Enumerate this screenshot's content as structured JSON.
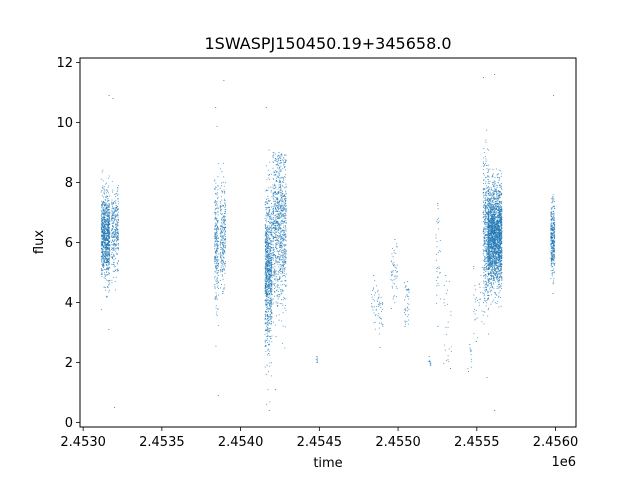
{
  "chart_data": {
    "type": "scatter",
    "title": "1SWASPJ150450.19+345658.0",
    "xlabel": "time",
    "ylabel": "flux",
    "x_offset_label": "1e6",
    "xlim": [
      2452980,
      2456130
    ],
    "ylim": [
      -0.15,
      12.15
    ],
    "x_ticks": [
      2453000,
      2453500,
      2454000,
      2454500,
      2455000,
      2455500,
      2456000
    ],
    "x_tick_labels": [
      "2.4530",
      "2.4535",
      "2.4540",
      "2.4545",
      "2.4550",
      "2.4555",
      "2.4560"
    ],
    "y_ticks": [
      0,
      2,
      4,
      6,
      8,
      10,
      12
    ],
    "y_tick_labels": [
      "0",
      "2",
      "4",
      "6",
      "8",
      "10",
      "12"
    ],
    "grid": false,
    "marker_color": "#1f77b4",
    "observation_clusters": [
      {
        "x_start": 2453115,
        "x_end": 2453170,
        "flux_center": 6.2,
        "flux_spread": 0.7,
        "flux_min": 3.1,
        "flux_max": 10.9,
        "points": 900
      },
      {
        "x_start": 2453180,
        "x_end": 2453225,
        "flux_center": 6.4,
        "flux_spread": 0.7,
        "flux_min": 0.5,
        "flux_max": 10.8,
        "points": 300
      },
      {
        "x_start": 2453835,
        "x_end": 2453860,
        "flux_center": 6.0,
        "flux_spread": 1.1,
        "flux_min": 0.9,
        "flux_max": 10.5,
        "points": 250
      },
      {
        "x_start": 2453870,
        "x_end": 2453905,
        "flux_center": 6.2,
        "flux_spread": 0.9,
        "flux_min": 4.3,
        "flux_max": 11.4,
        "points": 250
      },
      {
        "x_start": 2454155,
        "x_end": 2454200,
        "flux_center": 5.0,
        "flux_spread": 1.3,
        "flux_min": 0.4,
        "flux_max": 10.5,
        "points": 900
      },
      {
        "x_start": 2454205,
        "x_end": 2454290,
        "flux_center": 6.5,
        "flux_spread": 1.3,
        "flux_min": 1.1,
        "flux_max": 9.0,
        "points": 900
      },
      {
        "x_start": 2454480,
        "x_end": 2454490,
        "flux_center": 2.1,
        "flux_spread": 0.1,
        "flux_min": 2.0,
        "flux_max": 2.2,
        "points": 6
      },
      {
        "x_start": 2454830,
        "x_end": 2454905,
        "flux_center": 3.9,
        "flux_spread": 0.4,
        "flux_min": 2.5,
        "flux_max": 4.9,
        "points": 60
      },
      {
        "x_start": 2454955,
        "x_end": 2454995,
        "flux_center": 5.0,
        "flux_spread": 0.5,
        "flux_min": 3.8,
        "flux_max": 6.1,
        "points": 50
      },
      {
        "x_start": 2455040,
        "x_end": 2455070,
        "flux_center": 4.0,
        "flux_spread": 0.4,
        "flux_min": 3.2,
        "flux_max": 4.7,
        "points": 40
      },
      {
        "x_start": 2455190,
        "x_end": 2455210,
        "flux_center": 2.0,
        "flux_spread": 0.1,
        "flux_min": 1.9,
        "flux_max": 2.2,
        "points": 8
      },
      {
        "x_start": 2455240,
        "x_end": 2455270,
        "flux_center": 5.5,
        "flux_spread": 1.0,
        "flux_min": 3.2,
        "flux_max": 7.3,
        "points": 35
      },
      {
        "x_start": 2455290,
        "x_end": 2455340,
        "flux_center": 3.6,
        "flux_spread": 1.0,
        "flux_min": 1.8,
        "flux_max": 4.9,
        "points": 25
      },
      {
        "x_start": 2455440,
        "x_end": 2455470,
        "flux_center": 2.2,
        "flux_spread": 0.3,
        "flux_min": 1.7,
        "flux_max": 2.6,
        "points": 10
      },
      {
        "x_start": 2455480,
        "x_end": 2455540,
        "flux_center": 3.9,
        "flux_spread": 0.8,
        "flux_min": 2.7,
        "flux_max": 5.2,
        "points": 30
      },
      {
        "x_start": 2455540,
        "x_end": 2455575,
        "flux_center": 6.3,
        "flux_spread": 1.2,
        "flux_min": 1.5,
        "flux_max": 11.5,
        "points": 400
      },
      {
        "x_start": 2455570,
        "x_end": 2455660,
        "flux_center": 6.2,
        "flux_spread": 0.8,
        "flux_min": 0.4,
        "flux_max": 11.6,
        "points": 2200
      },
      {
        "x_start": 2455970,
        "x_end": 2455995,
        "flux_center": 6.1,
        "flux_spread": 0.6,
        "flux_min": 4.3,
        "flux_max": 10.9,
        "points": 350
      }
    ]
  }
}
